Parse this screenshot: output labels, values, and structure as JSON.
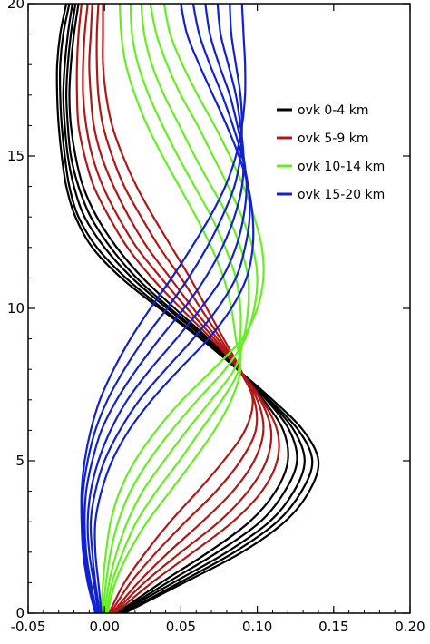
{
  "chart_data": {
    "type": "line",
    "title": "",
    "xlabel": "",
    "ylabel": "",
    "xlim": [
      -0.05,
      0.2
    ],
    "ylim": [
      0,
      20
    ],
    "x_ticks": [
      "-0.05",
      "0.00",
      "0.05",
      "0.10",
      "0.15",
      "0.20"
    ],
    "y_ticks": [
      "0",
      "5",
      "10",
      "15",
      "20"
    ],
    "grid": false,
    "legend_position": "right-upper",
    "groups": [
      {
        "name": "ovk 0-4 km",
        "color": "#000000",
        "start": 0,
        "count": 5
      },
      {
        "name": "ovk 5-9 km",
        "color": "#b01818",
        "start": 5,
        "count": 5
      },
      {
        "name": "ovk 10-14 km",
        "color": "#66ee22",
        "start": 10,
        "count": 5
      },
      {
        "name": "ovk 15-20 km",
        "color": "#1122cc",
        "start": 15,
        "count": 6
      }
    ],
    "series": [
      {
        "name": "ovk 0-4 km",
        "color": "#000000",
        "y": [
          0,
          1,
          2,
          3,
          4,
          5,
          6,
          7,
          8,
          9,
          10,
          11,
          12,
          13,
          14,
          15,
          16,
          17,
          18,
          19,
          20
        ],
        "x": [
          0.013,
          0.052,
          0.09,
          0.118,
          0.134,
          0.14,
          0.13,
          0.11,
          0.087,
          0.063,
          0.036,
          0.011,
          -0.008,
          -0.019,
          -0.025,
          -0.028,
          -0.03,
          -0.031,
          -0.031,
          -0.029,
          -0.025
        ]
      },
      {
        "name": "ovk 0-4 km",
        "color": "#000000",
        "y": [
          0,
          1,
          2,
          3,
          4,
          5,
          6,
          7,
          8,
          9,
          10,
          11,
          12,
          13,
          14,
          15,
          16,
          17,
          18,
          19,
          20
        ],
        "x": [
          0.012,
          0.049,
          0.085,
          0.113,
          0.129,
          0.136,
          0.127,
          0.108,
          0.087,
          0.064,
          0.038,
          0.014,
          -0.005,
          -0.017,
          -0.023,
          -0.026,
          -0.028,
          -0.029,
          -0.029,
          -0.027,
          -0.023
        ]
      },
      {
        "name": "ovk 0-4 km",
        "color": "#000000",
        "y": [
          0,
          1,
          2,
          3,
          4,
          5,
          6,
          7,
          8,
          9,
          10,
          11,
          12,
          13,
          14,
          15,
          16,
          17,
          18,
          19,
          20
        ],
        "x": [
          0.01,
          0.045,
          0.08,
          0.108,
          0.124,
          0.131,
          0.124,
          0.107,
          0.087,
          0.066,
          0.041,
          0.018,
          0.0,
          -0.013,
          -0.02,
          -0.024,
          -0.026,
          -0.027,
          -0.026,
          -0.024,
          -0.021
        ]
      },
      {
        "name": "ovk 0-4 km",
        "color": "#000000",
        "y": [
          0,
          1,
          2,
          3,
          4,
          5,
          6,
          7,
          8,
          9,
          10,
          11,
          12,
          13,
          14,
          15,
          16,
          17,
          18,
          19,
          20
        ],
        "x": [
          0.009,
          0.041,
          0.074,
          0.102,
          0.118,
          0.126,
          0.121,
          0.106,
          0.087,
          0.067,
          0.043,
          0.021,
          0.004,
          -0.009,
          -0.017,
          -0.022,
          -0.024,
          -0.025,
          -0.024,
          -0.022,
          -0.019
        ]
      },
      {
        "name": "ovk 0-4 km",
        "color": "#000000",
        "y": [
          0,
          1,
          2,
          3,
          4,
          5,
          6,
          7,
          8,
          9,
          10,
          11,
          12,
          13,
          14,
          15,
          16,
          17,
          18,
          19,
          20
        ],
        "x": [
          0.008,
          0.037,
          0.068,
          0.095,
          0.112,
          0.12,
          0.117,
          0.104,
          0.087,
          0.068,
          0.046,
          0.025,
          0.008,
          -0.005,
          -0.014,
          -0.019,
          -0.022,
          -0.023,
          -0.022,
          -0.02,
          -0.017
        ]
      },
      {
        "name": "ovk 5-9 km",
        "color": "#b01818",
        "y": [
          0,
          1,
          2,
          3,
          4,
          5,
          6,
          7,
          8,
          9,
          10,
          11,
          12,
          13,
          14,
          15,
          16,
          17,
          18,
          19,
          20
        ],
        "x": [
          0.007,
          0.031,
          0.058,
          0.084,
          0.103,
          0.113,
          0.113,
          0.103,
          0.088,
          0.07,
          0.05,
          0.031,
          0.015,
          0.003,
          -0.007,
          -0.013,
          -0.017,
          -0.018,
          -0.018,
          -0.017,
          -0.015
        ]
      },
      {
        "name": "ovk 5-9 km",
        "color": "#b01818",
        "y": [
          0,
          1,
          2,
          3,
          4,
          5,
          6,
          7,
          8,
          9,
          10,
          11,
          12,
          13,
          14,
          15,
          16,
          17,
          18,
          19,
          20
        ],
        "x": [
          0.006,
          0.026,
          0.05,
          0.075,
          0.094,
          0.106,
          0.109,
          0.102,
          0.088,
          0.072,
          0.054,
          0.037,
          0.021,
          0.009,
          -0.001,
          -0.008,
          -0.012,
          -0.014,
          -0.014,
          -0.013,
          -0.011
        ]
      },
      {
        "name": "ovk 5-9 km",
        "color": "#b01818",
        "y": [
          0,
          1,
          2,
          3,
          4,
          5,
          6,
          7,
          8,
          9,
          10,
          11,
          12,
          13,
          14,
          15,
          16,
          17,
          18,
          19,
          20
        ],
        "x": [
          0.005,
          0.022,
          0.042,
          0.064,
          0.084,
          0.098,
          0.104,
          0.1,
          0.088,
          0.074,
          0.058,
          0.043,
          0.028,
          0.016,
          0.006,
          -0.002,
          -0.007,
          -0.009,
          -0.01,
          -0.009,
          -0.008
        ]
      },
      {
        "name": "ovk 5-9 km",
        "color": "#b01818",
        "y": [
          0,
          1,
          2,
          3,
          4,
          5,
          6,
          7,
          8,
          9,
          10,
          11,
          12,
          13,
          14,
          15,
          16,
          17,
          18,
          19,
          20
        ],
        "x": [
          0.004,
          0.017,
          0.034,
          0.053,
          0.073,
          0.089,
          0.099,
          0.098,
          0.088,
          0.076,
          0.063,
          0.05,
          0.036,
          0.024,
          0.013,
          0.005,
          -0.001,
          -0.004,
          -0.005,
          -0.005,
          -0.004
        ]
      },
      {
        "name": "ovk 5-9 km",
        "color": "#b01818",
        "y": [
          0,
          1,
          2,
          3,
          4,
          5,
          6,
          7,
          8,
          9,
          10,
          11,
          12,
          13,
          14,
          15,
          16,
          17,
          18,
          19,
          20
        ],
        "x": [
          0.003,
          0.013,
          0.027,
          0.043,
          0.061,
          0.078,
          0.092,
          0.097,
          0.089,
          0.078,
          0.067,
          0.056,
          0.044,
          0.032,
          0.021,
          0.012,
          0.005,
          0.001,
          -0.001,
          -0.001,
          -0.001
        ]
      },
      {
        "name": "ovk 10-14 km",
        "color": "#66ee22",
        "y": [
          0,
          1,
          2,
          3,
          4,
          5,
          6,
          7,
          8,
          9,
          10,
          11,
          12,
          13,
          14,
          15,
          16,
          17,
          18,
          19,
          20
        ],
        "x": [
          0.002,
          0.007,
          0.016,
          0.028,
          0.043,
          0.058,
          0.072,
          0.083,
          0.089,
          0.086,
          0.083,
          0.078,
          0.07,
          0.06,
          0.049,
          0.038,
          0.028,
          0.02,
          0.014,
          0.011,
          0.01
        ]
      },
      {
        "name": "ovk 10-14 km",
        "color": "#66ee22",
        "y": [
          0,
          1,
          2,
          3,
          4,
          5,
          6,
          7,
          8,
          9,
          10,
          11,
          12,
          13,
          14,
          15,
          16,
          17,
          18,
          19,
          20
        ],
        "x": [
          0.001,
          0.005,
          0.012,
          0.021,
          0.034,
          0.049,
          0.063,
          0.077,
          0.088,
          0.089,
          0.089,
          0.086,
          0.079,
          0.07,
          0.059,
          0.048,
          0.038,
          0.029,
          0.022,
          0.018,
          0.017
        ]
      },
      {
        "name": "ovk 10-14 km",
        "color": "#66ee22",
        "y": [
          0,
          1,
          2,
          3,
          4,
          5,
          6,
          7,
          8,
          9,
          10,
          11,
          12,
          13,
          14,
          15,
          16,
          17,
          18,
          19,
          20
        ],
        "x": [
          0.0,
          0.003,
          0.008,
          0.015,
          0.025,
          0.039,
          0.054,
          0.07,
          0.085,
          0.091,
          0.094,
          0.094,
          0.089,
          0.081,
          0.07,
          0.059,
          0.049,
          0.039,
          0.031,
          0.026,
          0.024
        ]
      },
      {
        "name": "ovk 10-14 km",
        "color": "#66ee22",
        "y": [
          0,
          1,
          2,
          3,
          4,
          5,
          6,
          7,
          8,
          9,
          10,
          11,
          12,
          13,
          14,
          15,
          16,
          17,
          18,
          19,
          20
        ],
        "x": [
          -0.001,
          0.001,
          0.004,
          0.009,
          0.017,
          0.029,
          0.044,
          0.061,
          0.079,
          0.092,
          0.098,
          0.1,
          0.097,
          0.09,
          0.081,
          0.071,
          0.061,
          0.05,
          0.041,
          0.034,
          0.03
        ]
      },
      {
        "name": "ovk 10-14 km",
        "color": "#66ee22",
        "y": [
          0,
          1,
          2,
          3,
          4,
          5,
          6,
          7,
          8,
          9,
          10,
          11,
          12,
          13,
          14,
          15,
          16,
          17,
          18,
          19,
          20
        ],
        "x": [
          -0.002,
          -0.001,
          0.001,
          0.004,
          0.01,
          0.02,
          0.034,
          0.051,
          0.071,
          0.09,
          0.1,
          0.104,
          0.103,
          0.098,
          0.091,
          0.082,
          0.072,
          0.061,
          0.051,
          0.043,
          0.039
        ]
      },
      {
        "name": "ovk 15-20 km",
        "color": "#1122cc",
        "y": [
          0,
          1,
          2,
          3,
          4,
          5,
          6,
          7,
          8,
          9,
          10,
          11,
          12,
          13,
          14,
          15,
          16,
          17,
          18,
          19,
          20
        ],
        "x": [
          -0.002,
          -0.004,
          -0.006,
          -0.006,
          -0.002,
          0.005,
          0.016,
          0.031,
          0.049,
          0.068,
          0.083,
          0.093,
          0.097,
          0.097,
          0.094,
          0.088,
          0.08,
          0.071,
          0.062,
          0.054,
          0.05
        ]
      },
      {
        "name": "ovk 15-20 km",
        "color": "#1122cc",
        "y": [
          0,
          1,
          2,
          3,
          4,
          5,
          6,
          7,
          8,
          9,
          10,
          11,
          12,
          13,
          14,
          15,
          16,
          17,
          18,
          19,
          20
        ],
        "x": [
          -0.003,
          -0.006,
          -0.008,
          -0.009,
          -0.006,
          0.0,
          0.01,
          0.023,
          0.04,
          0.058,
          0.074,
          0.086,
          0.092,
          0.095,
          0.094,
          0.09,
          0.084,
          0.077,
          0.069,
          0.062,
          0.058
        ]
      },
      {
        "name": "ovk 15-20 km",
        "color": "#1122cc",
        "y": [
          0,
          1,
          2,
          3,
          4,
          5,
          6,
          7,
          8,
          9,
          10,
          11,
          12,
          13,
          14,
          15,
          16,
          17,
          18,
          19,
          20
        ],
        "x": [
          -0.004,
          -0.007,
          -0.01,
          -0.011,
          -0.009,
          -0.004,
          0.004,
          0.015,
          0.03,
          0.047,
          0.063,
          0.077,
          0.086,
          0.091,
          0.093,
          0.091,
          0.087,
          0.082,
          0.075,
          0.069,
          0.066
        ]
      },
      {
        "name": "ovk 15-20 km",
        "color": "#1122cc",
        "y": [
          0,
          1,
          2,
          3,
          4,
          5,
          6,
          7,
          8,
          9,
          10,
          11,
          12,
          13,
          14,
          15,
          16,
          17,
          18,
          19,
          20
        ],
        "x": [
          -0.005,
          -0.009,
          -0.012,
          -0.013,
          -0.012,
          -0.008,
          -0.002,
          0.008,
          0.021,
          0.036,
          0.052,
          0.066,
          0.077,
          0.085,
          0.09,
          0.091,
          0.089,
          0.086,
          0.081,
          0.076,
          0.074
        ]
      },
      {
        "name": "ovk 15-20 km",
        "color": "#1122cc",
        "y": [
          0,
          1,
          2,
          3,
          4,
          5,
          6,
          7,
          8,
          9,
          10,
          11,
          12,
          13,
          14,
          15,
          16,
          17,
          18,
          19,
          20
        ],
        "x": [
          -0.005,
          -0.01,
          -0.013,
          -0.014,
          -0.014,
          -0.011,
          -0.006,
          0.002,
          0.013,
          0.026,
          0.041,
          0.055,
          0.067,
          0.077,
          0.085,
          0.089,
          0.09,
          0.089,
          0.086,
          0.083,
          0.082
        ]
      },
      {
        "name": "ovk 15-20 km",
        "color": "#1122cc",
        "y": [
          0,
          1,
          2,
          3,
          4,
          5,
          6,
          7,
          8,
          9,
          10,
          11,
          12,
          13,
          14,
          15,
          16,
          17,
          18,
          19,
          20
        ],
        "x": [
          -0.006,
          -0.011,
          -0.014,
          -0.015,
          -0.015,
          -0.013,
          -0.009,
          -0.003,
          0.006,
          0.017,
          0.03,
          0.044,
          0.057,
          0.069,
          0.079,
          0.086,
          0.09,
          0.092,
          0.092,
          0.091,
          0.09
        ]
      }
    ]
  }
}
